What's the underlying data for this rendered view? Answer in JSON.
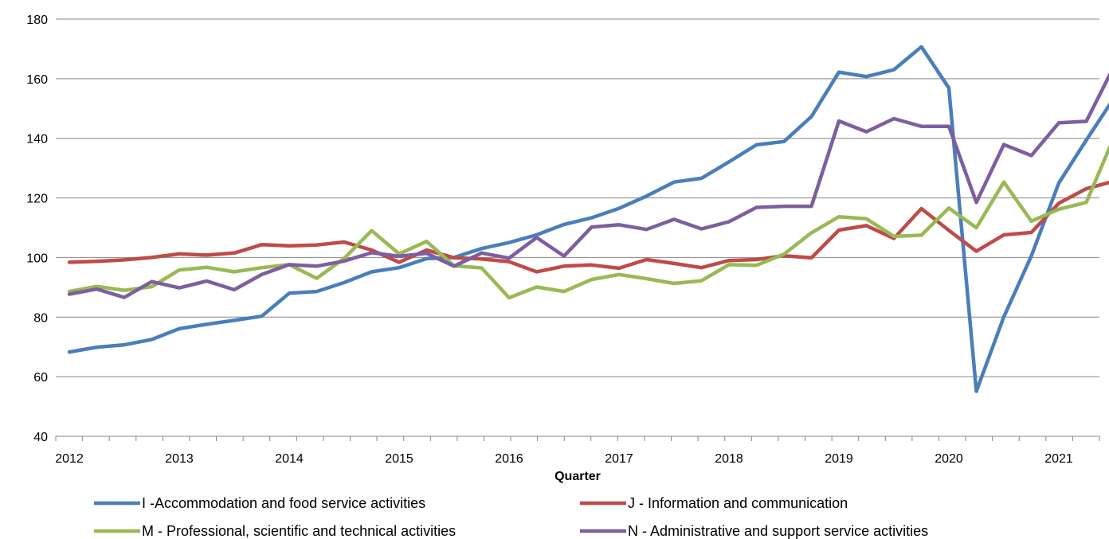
{
  "chart_data": {
    "type": "line",
    "title": "",
    "xlabel": "Quarter",
    "ylabel": "",
    "ylim": [
      40,
      180
    ],
    "yticks": [
      40,
      60,
      80,
      100,
      120,
      140,
      160,
      180
    ],
    "xlim": [
      2012,
      2021.75
    ],
    "xticks": [
      2012,
      2013,
      2014,
      2015,
      2016,
      2017,
      2018,
      2019,
      2020,
      2021
    ],
    "xtick_labels": [
      "2012",
      "2013",
      "2014",
      "2015",
      "2016",
      "2017",
      "2018",
      "2019",
      "2020",
      "2021"
    ],
    "grid": "horizontal",
    "legend_position": "bottom",
    "x": [
      2012.0,
      2012.25,
      2012.5,
      2012.75,
      2013.0,
      2013.25,
      2013.5,
      2013.75,
      2014.0,
      2014.25,
      2014.5,
      2014.75,
      2015.0,
      2015.25,
      2015.5,
      2015.75,
      2016.0,
      2016.25,
      2016.5,
      2016.75,
      2017.0,
      2017.25,
      2017.5,
      2017.75,
      2018.0,
      2018.25,
      2018.5,
      2018.75,
      2019.0,
      2019.25,
      2019.5,
      2019.75,
      2020.0,
      2020.25,
      2020.5,
      2020.75,
      2021.0,
      2021.25,
      2021.5
    ],
    "series": [
      {
        "name": "I -Accommodation and food service activities",
        "color": "#4a7ebb",
        "values": [
          68.3,
          69.9,
          70.7,
          72.5,
          76.1,
          77.6,
          78.9,
          80.3,
          88.0,
          88.6,
          91.6,
          95.2,
          96.6,
          99.6,
          100.0,
          103.0,
          105.0,
          107.6,
          111.1,
          113.3,
          116.5,
          120.6,
          125.3,
          126.6,
          132.1,
          137.8,
          138.9,
          147.3,
          162.2,
          160.7,
          163.0,
          170.7,
          156.9,
          55.1,
          80.1,
          100.5,
          125.0,
          139.4,
          153.4
        ]
      },
      {
        "name": "J - Information and communication",
        "color": "#be4b48",
        "values": [
          98.4,
          98.7,
          99.2,
          100.0,
          101.2,
          100.8,
          101.5,
          104.3,
          103.9,
          104.2,
          105.2,
          102.5,
          98.4,
          102.5,
          99.9,
          99.5,
          98.6,
          95.2,
          97.1,
          97.5,
          96.4,
          99.3,
          98.0,
          96.6,
          99.0,
          99.3,
          100.6,
          99.9,
          109.2,
          110.7,
          106.4,
          116.4,
          109.1,
          102.1,
          107.6,
          108.4,
          118.2,
          123.1,
          125.6
        ]
      },
      {
        "name": "M - Professional, scientific and technical activities",
        "color": "#98b954",
        "values": [
          88.6,
          90.3,
          89.0,
          90.2,
          95.8,
          96.7,
          95.2,
          96.6,
          97.6,
          93.0,
          99.7,
          109.0,
          101.2,
          105.4,
          97.2,
          96.5,
          86.5,
          90.1,
          88.6,
          92.6,
          94.3,
          92.9,
          91.3,
          92.2,
          97.6,
          97.4,
          101.1,
          108.3,
          113.7,
          113.0,
          107.1,
          107.5,
          116.6,
          110.0,
          125.3,
          112.2,
          116.2,
          118.5,
          140.2
        ]
      },
      {
        "name": "N - Administrative and support service activities",
        "color": "#7d5fa0",
        "values": [
          87.7,
          89.4,
          86.6,
          91.9,
          89.8,
          92.1,
          89.2,
          94.3,
          97.6,
          97.1,
          98.8,
          101.6,
          100.4,
          101.4,
          97.1,
          101.5,
          99.8,
          106.7,
          100.5,
          110.2,
          111.0,
          109.4,
          112.8,
          109.6,
          112.0,
          116.8,
          117.2,
          117.2,
          145.8,
          142.2,
          146.6,
          144.0,
          144.0,
          118.5,
          137.9,
          134.2,
          145.2,
          145.7,
          164.0
        ]
      }
    ]
  }
}
